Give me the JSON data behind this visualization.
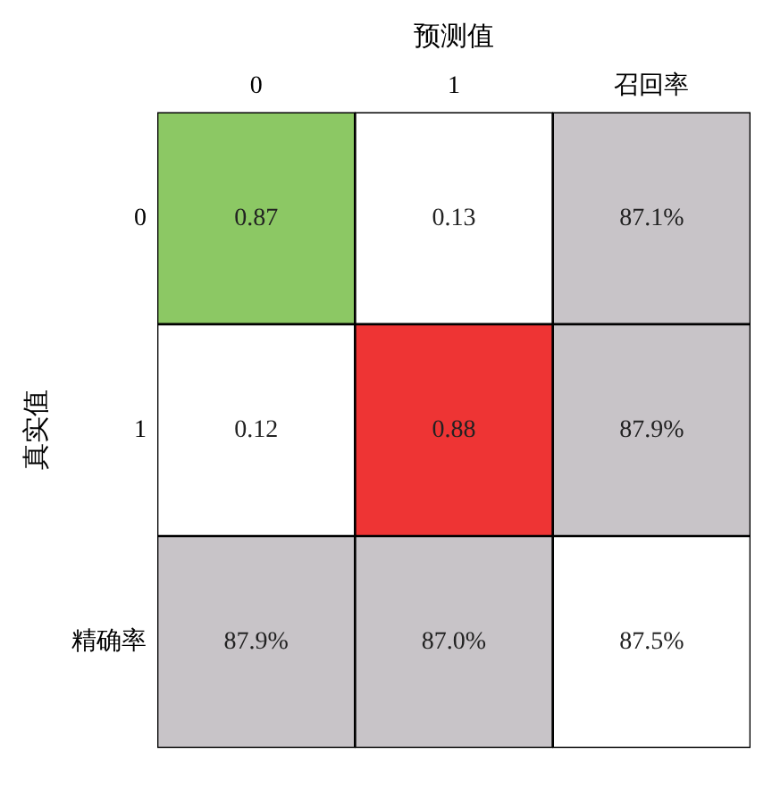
{
  "chart_data": {
    "type": "heatmap",
    "xlabel": "预测值",
    "ylabel": "真实值",
    "categories": [
      "0",
      "1",
      "召回率"
    ],
    "y_categories": [
      "0",
      "1",
      "精确率"
    ],
    "cells": [
      [
        0.87,
        0.13,
        87.1
      ],
      [
        0.12,
        0.88,
        87.9
      ],
      [
        87.9,
        87.0,
        87.5
      ]
    ],
    "cell_labels": [
      [
        "0.87",
        "0.13",
        "87.1%"
      ],
      [
        "0.12",
        "0.88",
        "87.9%"
      ],
      [
        "87.9%",
        "87.0%",
        "87.5%"
      ]
    ],
    "colors": [
      [
        "#8cc864",
        "#ffffff",
        "#c8c4c8"
      ],
      [
        "#ffffff",
        "#ee3434",
        "#c8c4c8"
      ],
      [
        "#c8c4c8",
        "#c8c4c8",
        "#ffffff"
      ]
    ]
  }
}
